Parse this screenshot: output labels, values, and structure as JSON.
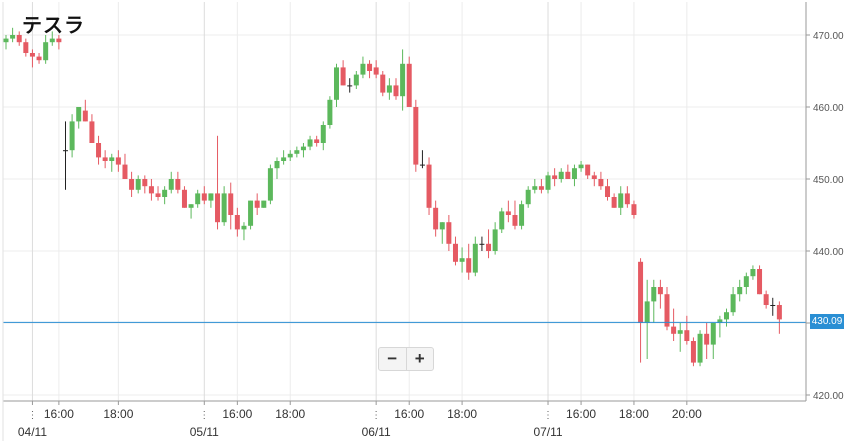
{
  "title": "テスラ",
  "zoom": {
    "minus": "−",
    "plus": "+"
  },
  "current_price_label": "430.09",
  "colors": {
    "up": "#5cb85c",
    "down": "#e55a63",
    "price_line": "#2a8fd4",
    "grid": "#ececec"
  },
  "chart_data": {
    "type": "candlestick",
    "title": "テスラ",
    "ylim": [
      418,
      474
    ],
    "y_ticks": [
      "420.00",
      "430.00",
      "440.00",
      "450.00",
      "460.00",
      "470.00"
    ],
    "y_tick_values": [
      420,
      430,
      440,
      450,
      460,
      470
    ],
    "x_ticks": [
      {
        "label": "04/11",
        "x": 4
      },
      {
        "label": "16:00",
        "x": 8
      },
      {
        "label": "18:00",
        "x": 17
      },
      {
        "label": "05/11",
        "x": 30
      },
      {
        "label": "16:00",
        "x": 35
      },
      {
        "label": "18:00",
        "x": 43
      },
      {
        "label": "06/11",
        "x": 56
      },
      {
        "label": "16:00",
        "x": 61
      },
      {
        "label": "18:00",
        "x": 69
      },
      {
        "label": "07/11",
        "x": 82
      },
      {
        "label": "16:00",
        "x": 87
      },
      {
        "label": "18:00",
        "x": 95
      },
      {
        "label": "20:00",
        "x": 103
      }
    ],
    "session_breaks": [
      4,
      30,
      56,
      82
    ],
    "current_price": 430.09,
    "candles": [
      [
        469,
        470,
        468,
        469.5
      ],
      [
        469.5,
        471,
        469,
        470
      ],
      [
        470,
        470.5,
        468.5,
        469
      ],
      [
        469,
        469.5,
        467,
        467.5
      ],
      [
        467.5,
        468,
        465.5,
        467
      ],
      [
        467,
        467.5,
        466,
        466.5
      ],
      [
        466.5,
        470,
        466,
        469
      ],
      [
        469,
        470.5,
        468.5,
        469.5
      ],
      [
        469.5,
        470,
        468,
        469
      ],
      [
        454,
        458,
        448.5,
        454
      ],
      [
        454,
        459,
        453,
        458
      ],
      [
        458,
        460,
        457,
        460
      ],
      [
        459.5,
        461,
        458,
        458
      ],
      [
        458,
        459,
        455,
        455
      ],
      [
        455,
        456,
        452,
        453
      ],
      [
        453,
        454,
        451.5,
        452.5
      ],
      [
        452.5,
        453.5,
        451,
        453
      ],
      [
        453,
        454,
        451,
        452
      ],
      [
        452,
        453.5,
        450,
        450
      ],
      [
        450,
        451,
        447.5,
        448.5
      ],
      [
        448.5,
        450.5,
        448,
        450
      ],
      [
        450,
        450.5,
        448,
        449
      ],
      [
        449,
        450,
        447,
        448
      ],
      [
        448,
        449,
        447,
        447.5
      ],
      [
        447.5,
        449,
        446.5,
        448.5
      ],
      [
        448.5,
        451,
        448,
        450
      ],
      [
        450,
        451,
        448,
        448.5
      ],
      [
        448.5,
        449,
        446,
        446
      ],
      [
        446,
        446.5,
        444.5,
        446.5
      ],
      [
        446.5,
        448.5,
        446,
        448
      ],
      [
        448,
        449,
        446.5,
        447
      ],
      [
        447,
        448,
        446,
        448
      ],
      [
        448,
        456,
        443,
        444
      ],
      [
        444,
        449,
        443.5,
        448
      ],
      [
        448,
        449.5,
        443,
        445
      ],
      [
        445,
        446,
        442,
        443
      ],
      [
        443,
        444,
        441.5,
        443.5
      ],
      [
        443.5,
        447,
        443,
        447
      ],
      [
        447,
        448,
        445,
        446
      ],
      [
        446,
        447,
        446,
        447
      ],
      [
        447,
        452,
        446.5,
        451.5
      ],
      [
        451.5,
        453,
        450,
        452.5
      ],
      [
        452.5,
        454,
        452,
        453
      ],
      [
        453,
        454,
        452.5,
        453.5
      ],
      [
        453.5,
        454.5,
        453,
        454
      ],
      [
        454,
        455,
        453,
        454.5
      ],
      [
        454.5,
        456,
        454,
        455.5
      ],
      [
        455.5,
        456,
        454.5,
        455
      ],
      [
        455,
        458,
        454,
        457.5
      ],
      [
        457.5,
        461.5,
        457,
        461
      ],
      [
        461,
        466,
        460,
        465.5
      ],
      [
        465.5,
        466.5,
        463,
        463
      ],
      [
        463,
        464,
        462,
        463
      ],
      [
        463,
        465,
        462.5,
        464.5
      ],
      [
        464.5,
        467,
        464,
        466
      ],
      [
        466,
        466.5,
        464,
        465
      ],
      [
        465.5,
        466.5,
        464,
        464.5
      ],
      [
        464.5,
        465,
        461.5,
        462
      ],
      [
        462,
        464,
        461,
        463
      ],
      [
        463,
        464,
        461,
        461.5
      ],
      [
        461.5,
        468,
        459.5,
        466
      ],
      [
        466,
        467,
        460,
        460
      ],
      [
        460,
        461,
        451,
        452
      ],
      [
        452,
        454,
        451.5,
        452
      ],
      [
        452,
        453,
        445,
        446
      ],
      [
        446,
        447,
        442,
        443
      ],
      [
        443,
        444,
        441,
        444
      ],
      [
        444,
        445,
        440,
        441
      ],
      [
        441,
        442,
        438,
        438.5
      ],
      [
        438.5,
        440.5,
        437,
        439
      ],
      [
        439,
        441,
        436,
        437
      ],
      [
        437,
        442,
        436.5,
        441
      ],
      [
        441,
        442,
        440,
        441
      ],
      [
        441,
        443,
        439,
        440
      ],
      [
        440,
        444,
        439.5,
        443
      ],
      [
        443,
        446,
        442.5,
        445.5
      ],
      [
        445.5,
        447,
        444,
        445
      ],
      [
        445,
        447,
        443,
        443.5
      ],
      [
        443.5,
        447,
        443,
        446.5
      ],
      [
        446.5,
        449,
        446,
        448.5
      ],
      [
        448.5,
        450,
        448,
        449
      ],
      [
        449,
        450,
        448,
        448.5
      ],
      [
        448.5,
        451,
        448,
        450.5
      ],
      [
        450.5,
        451.5,
        449,
        450
      ],
      [
        450,
        451.5,
        449.5,
        451
      ],
      [
        451,
        452,
        450,
        450
      ],
      [
        450,
        452,
        449,
        451.5
      ],
      [
        451.5,
        452.5,
        451,
        452
      ],
      [
        452,
        452,
        450,
        450.5
      ],
      [
        450.5,
        451,
        449,
        450
      ],
      [
        450,
        451,
        448.5,
        449
      ],
      [
        449,
        450,
        447,
        447.5
      ],
      [
        447.5,
        448,
        446,
        446
      ],
      [
        446,
        449,
        445,
        448
      ],
      [
        448,
        449,
        446,
        446.5
      ],
      [
        446.5,
        447,
        444.5,
        445
      ],
      [
        438.5,
        439,
        424.5,
        430
      ],
      [
        430,
        436,
        425,
        433
      ],
      [
        433,
        436,
        430,
        435
      ],
      [
        435,
        436,
        432,
        434
      ],
      [
        434,
        435,
        429,
        429.5
      ],
      [
        429.5,
        432,
        427.5,
        428.5
      ],
      [
        428.5,
        430,
        426,
        429
      ],
      [
        429,
        431,
        427,
        427.5
      ],
      [
        427.5,
        428,
        424,
        424.5
      ],
      [
        424.5,
        429,
        424,
        428.5
      ],
      [
        428.5,
        430,
        425,
        427
      ],
      [
        427,
        430,
        425,
        430
      ],
      [
        430,
        431,
        428,
        430.5
      ],
      [
        430.5,
        432,
        429.5,
        431.5
      ],
      [
        431.5,
        435,
        431,
        434
      ],
      [
        434,
        436,
        433,
        435
      ],
      [
        435,
        437,
        434,
        436.5
      ],
      [
        436.5,
        438,
        436,
        437.5
      ],
      [
        437.5,
        438,
        434,
        434
      ],
      [
        434,
        434.5,
        432,
        432.5
      ],
      [
        432.5,
        433.5,
        431,
        432.5
      ],
      [
        432.5,
        433,
        428.5,
        430.5
      ]
    ]
  }
}
